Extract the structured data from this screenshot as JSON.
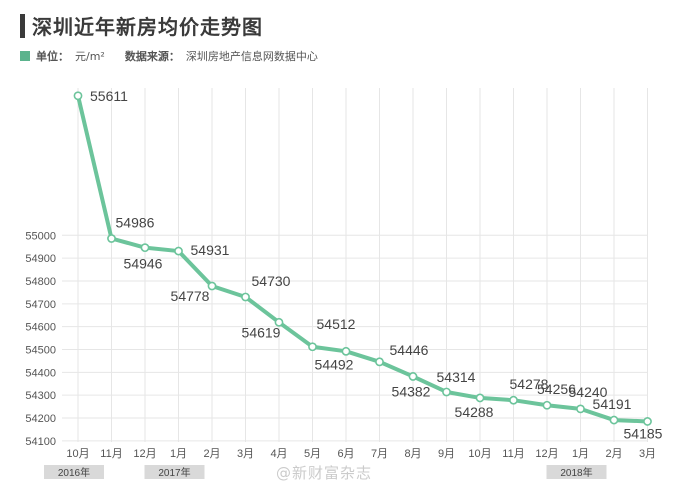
{
  "header": {
    "title": "深圳近年新房均价走势图",
    "unit_label": "单位：",
    "unit_value": "元/m²",
    "source_label": "数据来源：",
    "source_value": "深圳房地产信息网数据中心"
  },
  "colors": {
    "line": "#6cc49b",
    "marker_fill": "#ffffff",
    "marker_stroke": "#6cc49b",
    "grid": "#e6e6e6",
    "year_tag_bg": "#d9d9d9"
  },
  "watermark": "@新财富杂志",
  "chart_data": {
    "type": "line",
    "title": "深圳近年新房均价走势图",
    "xlabel": "",
    "ylabel": "",
    "categories": [
      "10月",
      "11月",
      "12月",
      "1月",
      "2月",
      "3月",
      "4月",
      "5月",
      "6月",
      "7月",
      "8月",
      "9月",
      "10月",
      "11月",
      "12月",
      "1月",
      "2月",
      "3月"
    ],
    "year_markers": [
      {
        "index": 0,
        "label": "2016年"
      },
      {
        "index": 3,
        "label": "2017年"
      },
      {
        "index": 15,
        "label": "2018年"
      }
    ],
    "series": [
      {
        "values": [
          55611,
          54986,
          54946,
          54931,
          54778,
          54730,
          54619,
          54512,
          54492,
          54446,
          54382,
          54314,
          54288,
          54278,
          54256,
          54240,
          54191,
          54185
        ]
      }
    ],
    "yticks": [
      54100,
      54200,
      54300,
      54400,
      54500,
      54600,
      54700,
      54800,
      54900,
      55000
    ],
    "ylim": [
      54095,
      55645
    ],
    "grid": true,
    "data_labels": true
  }
}
